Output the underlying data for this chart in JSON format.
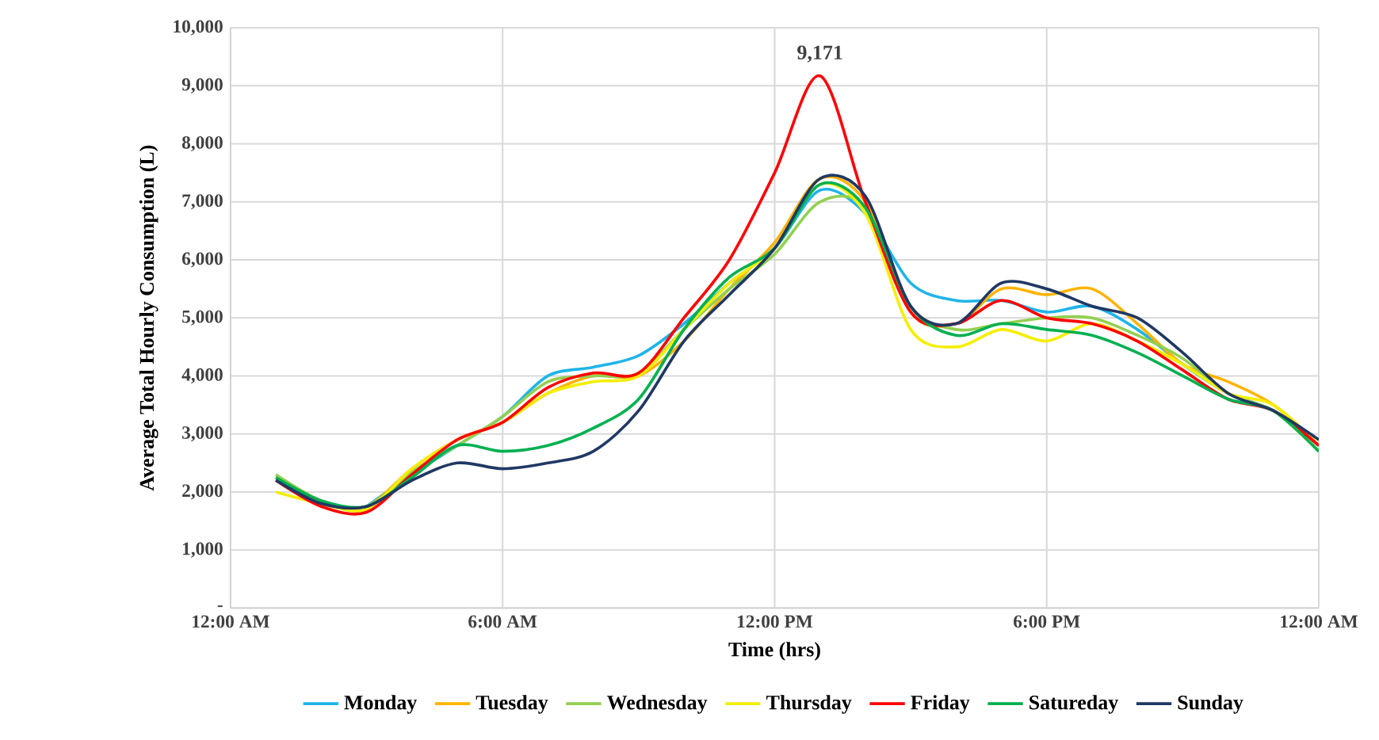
{
  "chart_data": {
    "type": "line",
    "xlabel": "Time (hrs)",
    "ylabel": "Average Total Hourly Consumption (L)",
    "x": [
      1,
      2,
      3,
      4,
      5,
      6,
      7,
      8,
      9,
      10,
      11,
      12,
      13,
      14,
      15,
      16,
      17,
      18,
      19,
      20,
      21,
      22,
      23,
      24
    ],
    "xlim": [
      0,
      24
    ],
    "ylim": [
      0,
      10000
    ],
    "xticks": [
      {
        "value": 0,
        "label": "12:00 AM"
      },
      {
        "value": 6,
        "label": "6:00 AM"
      },
      {
        "value": 12,
        "label": "12:00 PM"
      },
      {
        "value": 18,
        "label": "6:00 PM"
      },
      {
        "value": 24,
        "label": "12:00 AM"
      }
    ],
    "yticks": [
      {
        "value": 0,
        "label": "-"
      },
      {
        "value": 1000,
        "label": "1,000"
      },
      {
        "value": 2000,
        "label": "2,000"
      },
      {
        "value": 3000,
        "label": "3,000"
      },
      {
        "value": 4000,
        "label": "4,000"
      },
      {
        "value": 5000,
        "label": "5,000"
      },
      {
        "value": 6000,
        "label": "6,000"
      },
      {
        "value": 7000,
        "label": "7,000"
      },
      {
        "value": 8000,
        "label": "8,000"
      },
      {
        "value": 9000,
        "label": "9,000"
      },
      {
        "value": 10000,
        "label": "10,000"
      }
    ],
    "grid": true,
    "legend": "bottom",
    "annotations": [
      {
        "text": "9,171",
        "x": 13,
        "y": 9171
      }
    ],
    "series": [
      {
        "name": "Monday",
        "color": "#1fb4e8",
        "values": [
          null,
          null,
          1750,
          2300,
          2800,
          3300,
          4000,
          4150,
          4350,
          4900,
          5600,
          6200,
          7200,
          6800,
          5600,
          5300,
          5300,
          5100,
          5200,
          4800,
          4200,
          3700,
          3400,
          2800
        ]
      },
      {
        "name": "Tuesday",
        "color": "#ffb300",
        "values": [
          2250,
          1800,
          1750,
          2400,
          2900,
          3200,
          3700,
          4000,
          4000,
          4600,
          5500,
          6300,
          7400,
          7000,
          5100,
          4900,
          5500,
          5400,
          5500,
          4900,
          4200,
          3900,
          3500,
          2800
        ]
      },
      {
        "name": "Wednesday",
        "color": "#92d050",
        "values": [
          2300,
          1850,
          1750,
          2350,
          2800,
          3300,
          3900,
          4000,
          4050,
          4800,
          5500,
          6100,
          7000,
          6900,
          5200,
          4800,
          4900,
          5000,
          5000,
          4700,
          4300,
          3700,
          3400,
          2700
        ]
      },
      {
        "name": "Thursday",
        "color": "#f5ee00",
        "values": [
          2000,
          1800,
          1700,
          2400,
          2900,
          3200,
          3700,
          3900,
          4000,
          4800,
          5600,
          6200,
          7300,
          6800,
          4800,
          4500,
          4800,
          4600,
          4900,
          4600,
          4200,
          3700,
          3500,
          2800
        ]
      },
      {
        "name": "Friday",
        "color": "#ff0000",
        "values": [
          2200,
          1750,
          1650,
          2300,
          2900,
          3200,
          3800,
          4050,
          4050,
          5000,
          6000,
          7500,
          9171,
          7000,
          5100,
          4900,
          5300,
          5000,
          4900,
          4600,
          4100,
          3600,
          3400,
          2800
        ]
      },
      {
        "name": "Satureday",
        "color": "#00b050",
        "values": [
          2250,
          1850,
          1750,
          2250,
          2800,
          2700,
          2800,
          3100,
          3600,
          4800,
          5700,
          6200,
          7300,
          6900,
          5200,
          4700,
          4900,
          4800,
          4700,
          4400,
          4000,
          3600,
          3400,
          2700
        ]
      },
      {
        "name": "Sunday",
        "color": "#203864",
        "values": [
          2200,
          1800,
          1750,
          2200,
          2500,
          2400,
          2500,
          2700,
          3400,
          4600,
          5400,
          6200,
          7400,
          7100,
          5200,
          4900,
          5600,
          5500,
          5200,
          5000,
          4400,
          3700,
          3400,
          2900
        ]
      }
    ]
  }
}
